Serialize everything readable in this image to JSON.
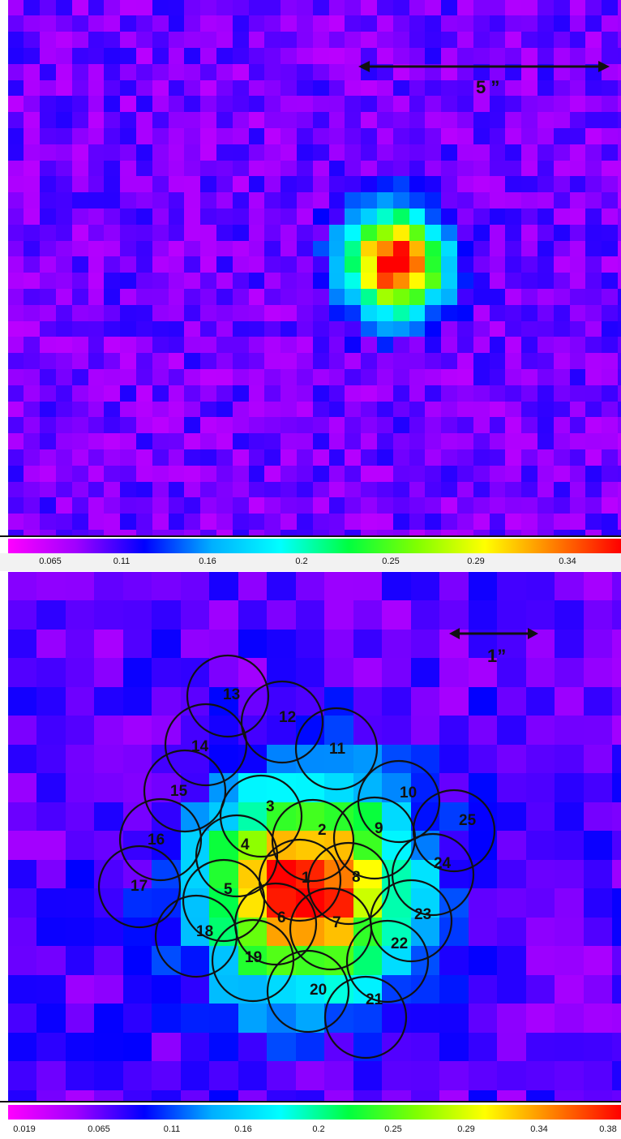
{
  "top_panel": {
    "scale_bar_label": "5 ”",
    "colorbar_ticks": [
      "0.065",
      "0.11",
      "0.16",
      "0.2",
      "0.25",
      "0.29",
      "0.34"
    ]
  },
  "bottom_panel": {
    "scale_bar_label": "1”",
    "apertures": [
      "1",
      "2",
      "3",
      "4",
      "5",
      "6",
      "7",
      "8",
      "9",
      "10",
      "11",
      "12",
      "13",
      "14",
      "15",
      "16",
      "17",
      "18",
      "19",
      "20",
      "21",
      "22",
      "23",
      "24",
      "25"
    ],
    "colorbar_ticks": [
      "0.019",
      "0.065",
      "0.11",
      "0.16",
      "0.2",
      "0.25",
      "0.29",
      "0.34",
      "0.38"
    ]
  },
  "colormap": [
    "#ff00ff",
    "#a000ff",
    "#0000ff",
    "#00b0ff",
    "#00ffff",
    "#00ff40",
    "#80ff00",
    "#ffff00",
    "#ff8000",
    "#ff0000"
  ]
}
